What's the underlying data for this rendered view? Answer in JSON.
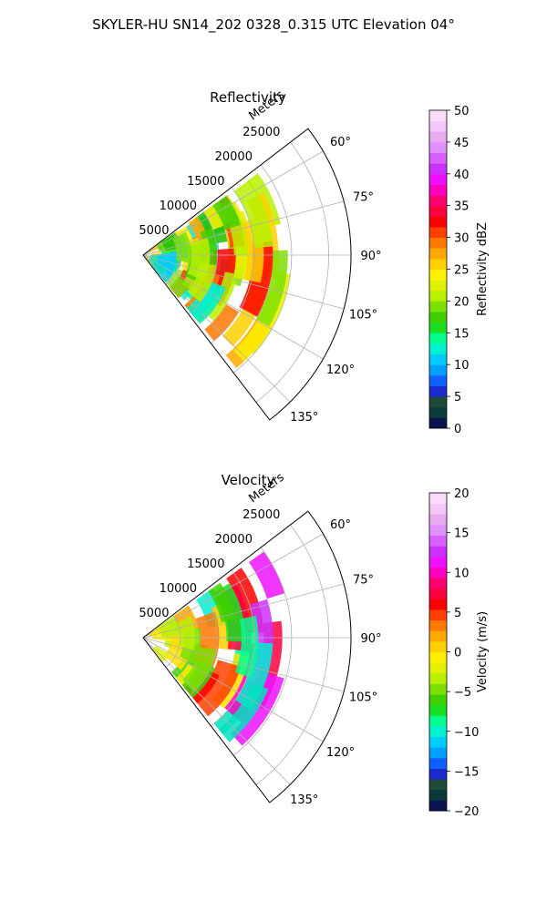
{
  "figure": {
    "suptitle": "SKYLER-HU  SN14_202  0328_0.315 UTC Elevation 04°"
  },
  "chart_data": [
    {
      "type": "heatmap",
      "subtype": "polar-sector",
      "title": "Reflectivity",
      "radial_label": "Meters",
      "radial_ticks": [
        "5000",
        "10000",
        "15000",
        "20000",
        "25000"
      ],
      "radial_tick_values": [
        5000,
        10000,
        15000,
        20000,
        25000
      ],
      "rlim": [
        0,
        28000
      ],
      "angle_ticks": [
        "60°",
        "75°",
        "90°",
        "105°",
        "120°",
        "135°"
      ],
      "angle_tick_values": [
        60,
        75,
        90,
        105,
        120,
        135
      ],
      "angle_range_deg": [
        52.5,
        142.5
      ],
      "grid": true,
      "colorbar": {
        "label": "Reflectivity dBZ",
        "min": 0,
        "max": 50,
        "ticks": [
          "0",
          "5",
          "10",
          "15",
          "20",
          "25",
          "30",
          "35",
          "40",
          "45",
          "50"
        ],
        "tick_values": [
          0,
          5,
          10,
          15,
          20,
          25,
          30,
          35,
          40,
          45,
          50
        ],
        "colors": [
          "#0a1450",
          "#0a3a3a",
          "#1f4a3a",
          "#1a2acc",
          "#1060ff",
          "#00a0ff",
          "#00ccff",
          "#00f0d0",
          "#00ff90",
          "#18e020",
          "#40d000",
          "#7ee000",
          "#b8f000",
          "#e0f000",
          "#fff000",
          "#ffd000",
          "#ffa800",
          "#ff7800",
          "#ff4000",
          "#ff0000",
          "#ff0040",
          "#ff0070",
          "#ff00c0",
          "#ee10ff",
          "#cc30ff",
          "#d860ff",
          "#e090ff",
          "#eaaaf0",
          "#f2c6f6",
          "#f8dcfa"
        ]
      },
      "cells": [
        [
          6,
          29,
          0.5,
          "#ffcc00"
        ],
        [
          30,
          48,
          0.4,
          "#a8e820"
        ],
        [
          48,
          78,
          0.45,
          "#1ee8a0"
        ],
        [
          80,
          98,
          0.35,
          "#22ccb0"
        ],
        [
          10,
          30,
          0.6,
          "#ffdd30"
        ],
        [
          32,
          55,
          0.55,
          "#90e030"
        ],
        [
          55,
          82,
          0.5,
          "#20d8c0"
        ],
        [
          84,
          100,
          0.4,
          "#30c8a0"
        ],
        [
          6,
          24,
          1.0,
          "#b8f000"
        ],
        [
          25,
          42,
          0.9,
          "#60d020"
        ],
        [
          48,
          66,
          0.7,
          "#00f0d0"
        ],
        [
          68,
          92,
          0.7,
          "#20c000"
        ],
        [
          92,
          110,
          0.5,
          "#7ee000"
        ],
        [
          4,
          20,
          0.9,
          "#ffe000"
        ],
        [
          24,
          40,
          0.9,
          "#9ee800"
        ],
        [
          54,
          70,
          0.6,
          "#00ccff"
        ],
        [
          72,
          95,
          0.7,
          "#b8f000"
        ],
        [
          96,
          115,
          0.6,
          "#ffe000"
        ],
        [
          8,
          30,
          0.8,
          "#00e0c0"
        ],
        [
          32,
          46,
          0.7,
          "#fff000"
        ],
        [
          54,
          68,
          0.55,
          "#ff7800"
        ],
        [
          70,
          90,
          0.6,
          "#b8f000"
        ],
        [
          92,
          112,
          0.6,
          "#ffd000"
        ],
        [
          118,
          135,
          0.5,
          "#7ee000"
        ],
        [
          18,
          38,
          0.7,
          "#00ccff"
        ],
        [
          42,
          56,
          0.6,
          "#fff000"
        ],
        [
          60,
          80,
          0.6,
          "#ff4000"
        ],
        [
          82,
          96,
          0.55,
          "#ffa800"
        ],
        [
          100,
          118,
          0.6,
          "#e0f000"
        ],
        [
          122,
          138,
          0.55,
          "#ffd000"
        ],
        [
          138,
          152,
          0.5,
          "#b8f000"
        ],
        [
          20,
          40,
          0.7,
          "#00e0c0"
        ],
        [
          46,
          60,
          0.6,
          "#ff4000"
        ],
        [
          60,
          72,
          0.55,
          "#ffa800"
        ],
        [
          76,
          100,
          0.6,
          "#ff0000"
        ],
        [
          104,
          120,
          0.55,
          "#ff7800"
        ],
        [
          126,
          146,
          0.6,
          "#ffd000"
        ],
        [
          146,
          160,
          0.55,
          "#e0f000"
        ],
        [
          18,
          36,
          0.6,
          "#40d000"
        ],
        [
          44,
          62,
          0.6,
          "#ffe000"
        ],
        [
          70,
          86,
          0.6,
          "#ff7800"
        ],
        [
          94,
          110,
          0.55,
          "#ff4000"
        ],
        [
          118,
          140,
          0.55,
          "#ff0000"
        ],
        [
          140,
          158,
          0.5,
          "#ffa800"
        ],
        [
          30,
          48,
          0.5,
          "#00ccff"
        ],
        [
          52,
          70,
          0.5,
          "#b8f000"
        ],
        [
          80,
          100,
          0.5,
          "#fff000"
        ],
        [
          112,
          130,
          0.5,
          "#ffd000"
        ],
        [
          142,
          158,
          0.5,
          "#fff000"
        ],
        [
          22,
          40,
          0.6,
          "#7ee000"
        ],
        [
          50,
          66,
          0.6,
          "#40d000"
        ],
        [
          74,
          90,
          0.55,
          "#00f0d0"
        ],
        [
          98,
          112,
          0.5,
          "#b8f000"
        ],
        [
          16,
          36,
          0.6,
          "#00ccff"
        ],
        [
          44,
          60,
          0.6,
          "#7ee000"
        ],
        [
          66,
          80,
          0.5,
          "#40d000"
        ],
        [
          90,
          104,
          0.5,
          "#b8f000"
        ],
        [
          24,
          42,
          0.6,
          "#20c000"
        ],
        [
          52,
          72,
          0.6,
          "#b8f000"
        ],
        [
          80,
          96,
          0.5,
          "#00f0d0"
        ],
        [
          120,
          140,
          0.5,
          "#b8f000"
        ],
        [
          140,
          156,
          0.5,
          "#7ee000"
        ],
        [
          14,
          30,
          0.6,
          "#00e0c0"
        ],
        [
          36,
          52,
          0.6,
          "#7ee000"
        ],
        [
          62,
          80,
          0.5,
          "#b8f000"
        ],
        [
          92,
          110,
          0.5,
          "#40d000"
        ]
      ]
    },
    {
      "type": "heatmap",
      "subtype": "polar-sector",
      "title": "Velocity",
      "radial_label": "Meters",
      "radial_ticks": [
        "5000",
        "10000",
        "15000",
        "20000",
        "25000"
      ],
      "radial_tick_values": [
        5000,
        10000,
        15000,
        20000,
        25000
      ],
      "rlim": [
        0,
        28000
      ],
      "angle_ticks": [
        "60°",
        "75°",
        "90°",
        "105°",
        "120°",
        "135°"
      ],
      "angle_tick_values": [
        60,
        75,
        90,
        105,
        120,
        135
      ],
      "angle_range_deg": [
        52.5,
        142.5
      ],
      "grid": true,
      "colorbar": {
        "label": "Velocity (m/s)",
        "min": -20,
        "max": 20,
        "ticks": [
          "−20",
          "−15",
          "−10",
          "−5",
          "0",
          "5",
          "10",
          "15",
          "20"
        ],
        "tick_values": [
          -20,
          -15,
          -10,
          -5,
          0,
          5,
          10,
          15,
          20
        ],
        "colors": [
          "#0a1450",
          "#0a3a3a",
          "#1f4a3a",
          "#1a2acc",
          "#1060ff",
          "#00a0ff",
          "#00ccff",
          "#00f0d0",
          "#00ff90",
          "#18e020",
          "#40d000",
          "#7ee000",
          "#b8f000",
          "#e0f000",
          "#fff000",
          "#ffd000",
          "#ffa800",
          "#ff7800",
          "#ff4000",
          "#ff0000",
          "#ff0040",
          "#ff0070",
          "#ff00c0",
          "#ee10ff",
          "#cc30ff",
          "#d860ff",
          "#e090ff",
          "#eaaaf0",
          "#f2c6f6",
          "#f8dcfa"
        ]
      },
      "cells": [
        [
          6,
          24,
          0.9,
          "#ffd000"
        ],
        [
          24,
          44,
          0.8,
          "#b8f000"
        ],
        [
          48,
          70,
          0.7,
          "#40d000"
        ],
        [
          70,
          92,
          0.6,
          "#00f0d0"
        ],
        [
          100,
          118,
          0.5,
          "#00ff90"
        ],
        [
          120,
          135,
          0.5,
          "#00e0c0"
        ],
        [
          10,
          30,
          0.8,
          "#fff000"
        ],
        [
          30,
          54,
          0.8,
          "#ffe000"
        ],
        [
          56,
          76,
          0.6,
          "#fff000"
        ],
        [
          80,
          96,
          0.5,
          "#ffd000"
        ],
        [
          100,
          116,
          0.5,
          "#ffe000"
        ],
        [
          40,
          60,
          0.7,
          "#ffa800"
        ],
        [
          60,
          82,
          0.7,
          "#ff7800"
        ],
        [
          84,
          110,
          0.6,
          "#ff4000"
        ],
        [
          110,
          130,
          0.6,
          "#ff0000"
        ],
        [
          130,
          150,
          0.6,
          "#ff0040"
        ],
        [
          70,
          92,
          0.6,
          "#ff0000"
        ],
        [
          92,
          116,
          0.6,
          "#ff0040"
        ],
        [
          116,
          140,
          0.6,
          "#ff00c0"
        ],
        [
          140,
          160,
          0.55,
          "#ee10ff"
        ],
        [
          120,
          140,
          0.5,
          "#cc30ff"
        ],
        [
          140,
          158,
          0.5,
          "#ee10ff"
        ],
        [
          20,
          40,
          0.7,
          "#b8f000"
        ],
        [
          44,
          62,
          0.6,
          "#7ee000"
        ],
        [
          66,
          84,
          0.6,
          "#40d000"
        ],
        [
          90,
          110,
          0.55,
          "#18e020"
        ],
        [
          120,
          140,
          0.5,
          "#00f0d0"
        ],
        [
          16,
          34,
          0.6,
          "#e0f000"
        ],
        [
          40,
          56,
          0.6,
          "#b8f000"
        ],
        [
          62,
          80,
          0.6,
          "#7ee000"
        ],
        [
          86,
          102,
          0.55,
          "#40d000"
        ],
        [
          106,
          124,
          0.5,
          "#00ff90"
        ],
        [
          128,
          146,
          0.5,
          "#00e0c0"
        ]
      ]
    }
  ]
}
